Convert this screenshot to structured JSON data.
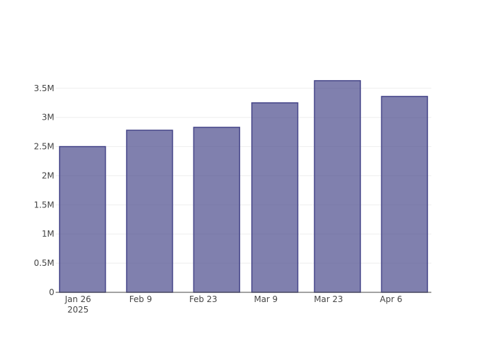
{
  "chart_data": {
    "type": "bar",
    "x": [
      "2025-01-27",
      "2025-02-11",
      "2025-02-26",
      "2025-03-11",
      "2025-03-25",
      "2025-04-09"
    ],
    "values": [
      2500000,
      2780000,
      2830000,
      3250000,
      3630000,
      3360000
    ],
    "color": "#444488",
    "xlim": [
      "2025-01-21",
      "2025-04-15"
    ],
    "xticks": [
      {
        "value": "2025-01-26",
        "label": "Jan 26\n2025"
      },
      {
        "value": "2025-02-09",
        "label": "Feb 9"
      },
      {
        "value": "2025-02-23",
        "label": "Feb 23"
      },
      {
        "value": "2025-03-09",
        "label": "Mar 9"
      },
      {
        "value": "2025-03-23",
        "label": "Mar 23"
      },
      {
        "value": "2025-04-06",
        "label": "Apr 6"
      }
    ],
    "ylim": [
      0,
      3820000
    ],
    "yticks": [
      0,
      {
        "value": 500000,
        "label": "0.5M"
      },
      {
        "value": 1000000,
        "label": "1M"
      },
      {
        "value": 1500000,
        "label": "1.5M"
      },
      {
        "value": 2000000,
        "label": "2M"
      },
      {
        "value": 2500000,
        "label": "2.5M"
      },
      {
        "value": 3000000,
        "label": "3M"
      },
      {
        "value": 3500000,
        "label": "3.5M"
      }
    ],
    "grid": true
  }
}
